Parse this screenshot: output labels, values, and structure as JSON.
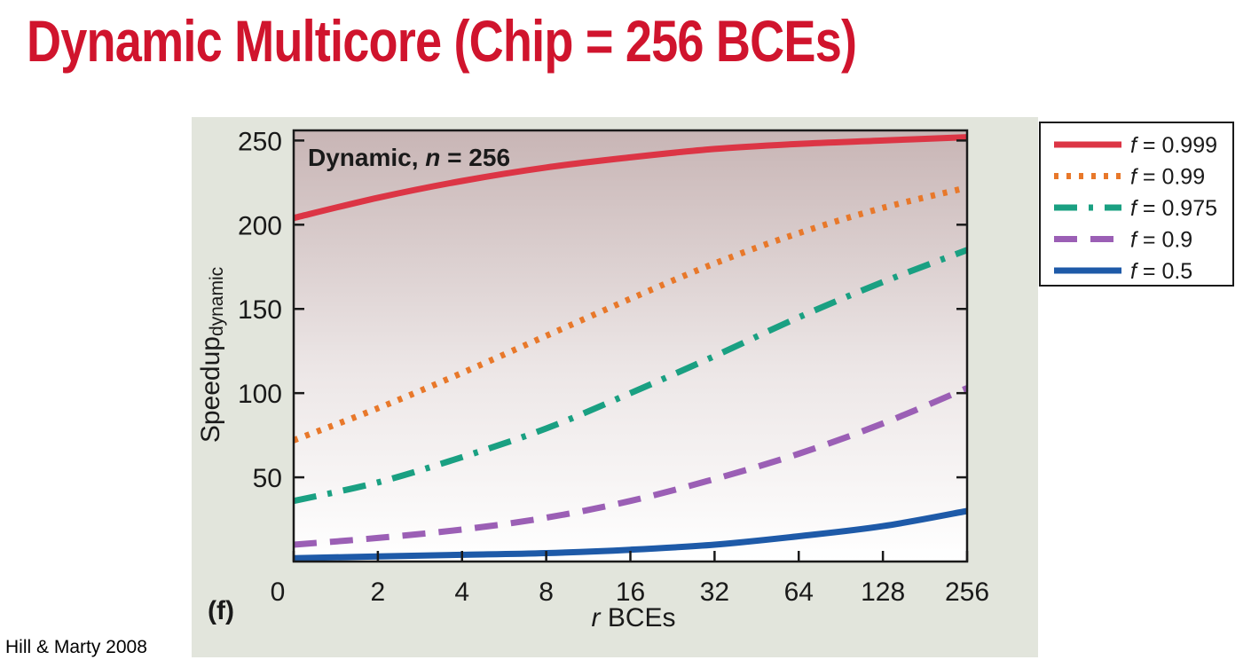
{
  "slide": {
    "title": "Dynamic Multicore (Chip = 256 BCEs)",
    "citation": "Hill & Marty 2008"
  },
  "colors": {
    "title": "#d0142d",
    "chart_background": "#e2e5dc"
  },
  "chart_data": {
    "type": "line",
    "title": "",
    "panel_label": "(f)",
    "annotation": {
      "prefix": "Dynamic, ",
      "var": "n",
      "suffix": " = 256"
    },
    "xlabel": {
      "var": "r",
      "text": " BCEs"
    },
    "ylabel": {
      "main": "Speedup",
      "sub": "dynamic"
    },
    "x_ticks": [
      "0",
      "2",
      "4",
      "8",
      "16",
      "32",
      "64",
      "128",
      "256"
    ],
    "x": [
      1,
      2,
      4,
      8,
      16,
      32,
      64,
      128,
      256
    ],
    "y_ticks": [
      50,
      100,
      150,
      200,
      250
    ],
    "ylim": [
      0,
      256
    ],
    "grid": false,
    "legend_position": "top-right outside",
    "series": [
      {
        "name_var": "f",
        "name_value": " = 0.999",
        "color": "#dc3545",
        "style": "solid",
        "values": [
          204,
          216,
          226,
          234,
          240,
          245,
          248,
          250,
          252
        ]
      },
      {
        "name_var": "f",
        "name_value": " = 0.99",
        "color": "#e8782a",
        "style": "dotted",
        "values": [
          72,
          91,
          112,
          134,
          156,
          177,
          195,
          210,
          222
        ]
      },
      {
        "name_var": "f",
        "name_value": " = 0.975",
        "color": "#1aa082",
        "style": "dashdot",
        "values": [
          36,
          47,
          62,
          79,
          100,
          122,
          145,
          166,
          185
        ]
      },
      {
        "name_var": "f",
        "name_value": " = 0.9",
        "color": "#9b5fb5",
        "style": "dashed",
        "values": [
          10,
          14,
          19,
          26,
          36,
          49,
          64,
          82,
          103
        ]
      },
      {
        "name_var": "f",
        "name_value": " = 0.5",
        "color": "#1e5aa8",
        "style": "solid",
        "values": [
          2,
          3,
          4,
          5,
          7,
          10,
          15,
          21,
          30
        ]
      }
    ]
  }
}
